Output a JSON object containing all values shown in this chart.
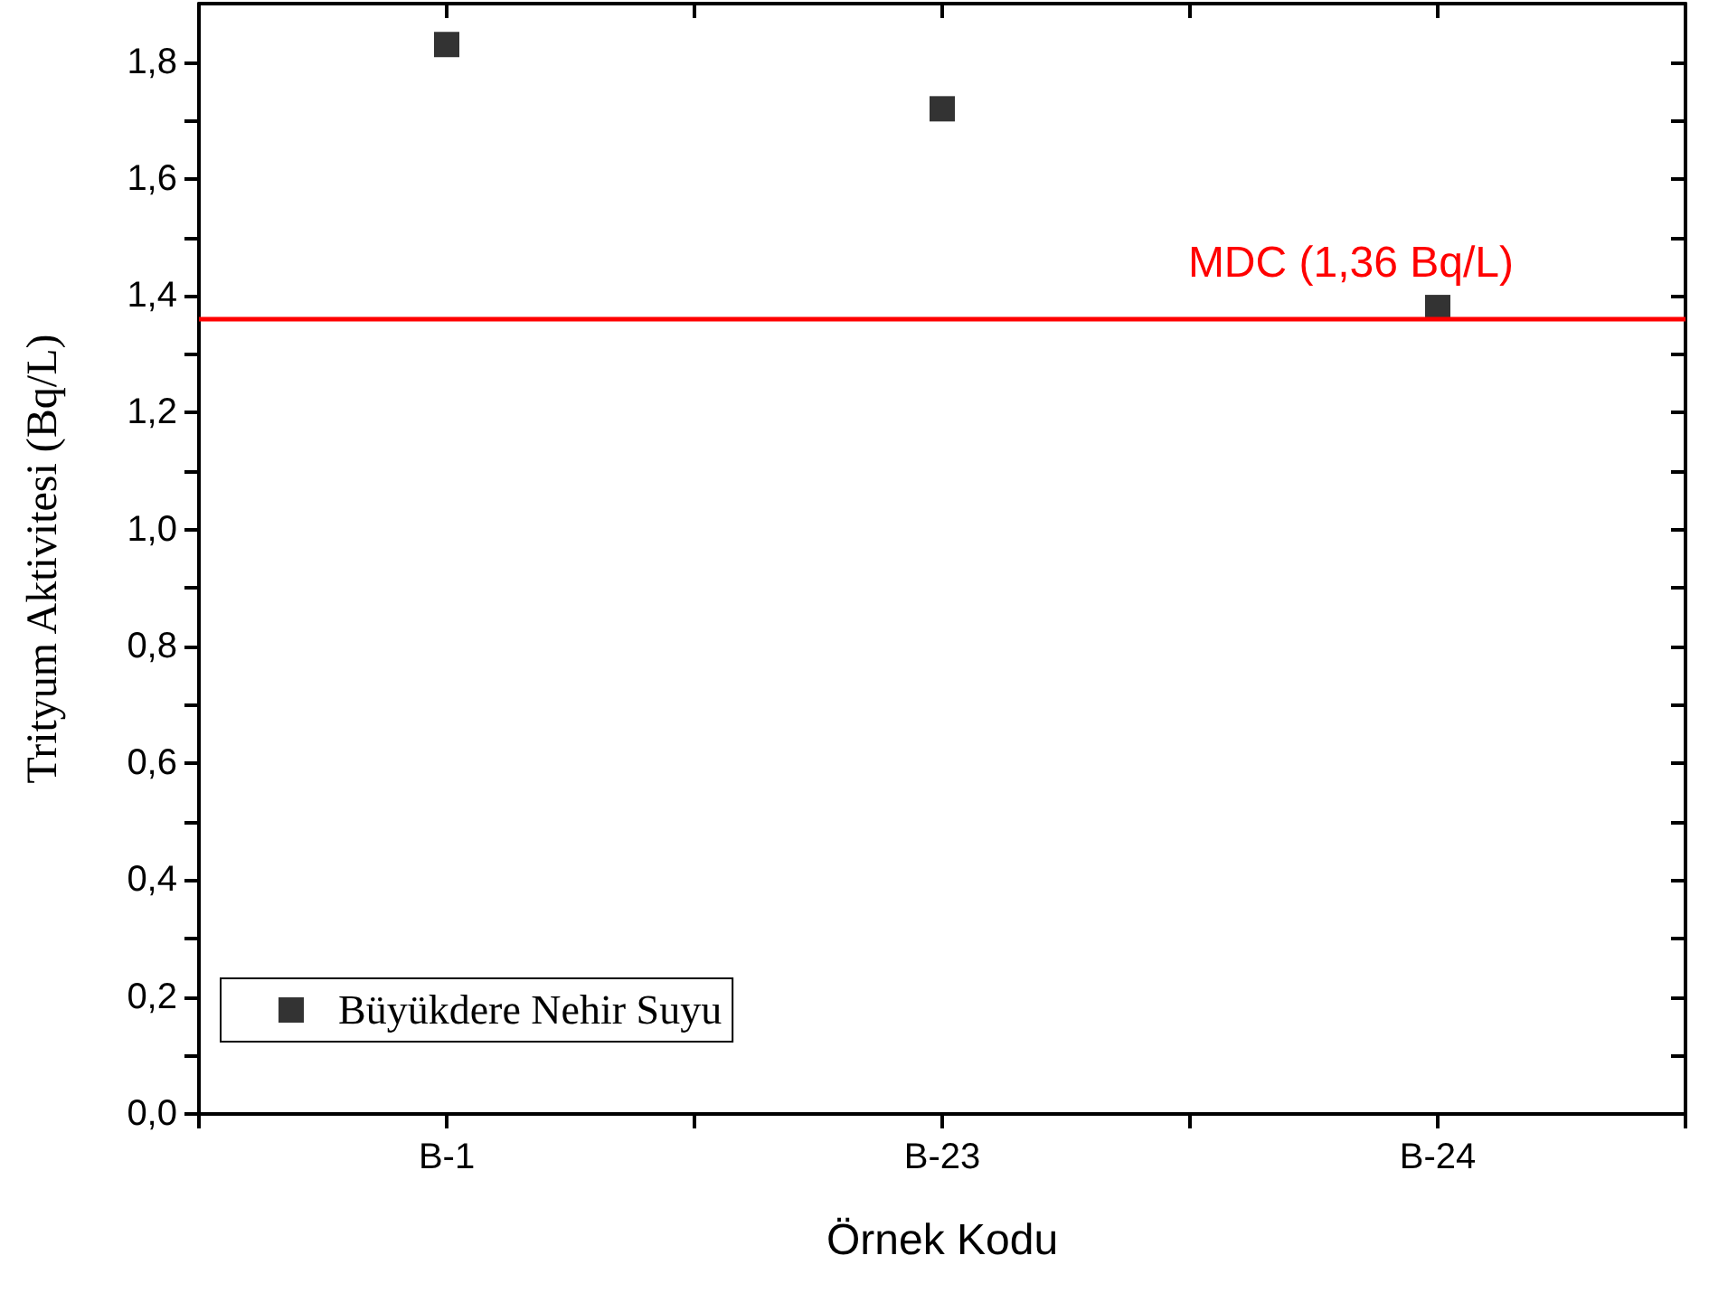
{
  "chart_data": {
    "type": "scatter",
    "xlabel": "Örnek Kodu",
    "ylabel": "Trityum Aktivitesi (Bq/L)",
    "categories": [
      "B-1",
      "B-23",
      "B-24"
    ],
    "series": [
      {
        "name": "Büyükdere Nehir Suyu",
        "color": "#000000",
        "values": [
          1.83,
          1.72,
          1.38
        ]
      }
    ],
    "marker": "square",
    "ylim": [
      0,
      1.9
    ],
    "yticks": [
      {
        "value": 0,
        "label": "0,0"
      },
      {
        "value": 0.1,
        "label": null
      },
      {
        "value": 0.2,
        "label": "0,2"
      },
      {
        "value": 0.3,
        "label": null
      },
      {
        "value": 0.4,
        "label": "0,4"
      },
      {
        "value": 0.5,
        "label": null
      },
      {
        "value": 0.6,
        "label": "0,6"
      },
      {
        "value": 0.7,
        "label": null
      },
      {
        "value": 0.8,
        "label": "0,8"
      },
      {
        "value": 0.9,
        "label": null
      },
      {
        "value": 1.0,
        "label": "1,0"
      },
      {
        "value": 1.1,
        "label": null
      },
      {
        "value": 1.2,
        "label": "1,2"
      },
      {
        "value": 1.3,
        "label": null
      },
      {
        "value": 1.4,
        "label": "1,4"
      },
      {
        "value": 1.5,
        "label": null
      },
      {
        "value": 1.6,
        "label": "1,6"
      },
      {
        "value": 1.7,
        "label": null
      },
      {
        "value": 1.8,
        "label": "1,8"
      }
    ],
    "ref_lines": [
      {
        "axis": "y",
        "value": 1.36,
        "label": "MDC (1,36 Bq/L)",
        "color": "#ff0000",
        "line_style": "solid"
      }
    ],
    "grid": false,
    "legend": "bottom left"
  }
}
